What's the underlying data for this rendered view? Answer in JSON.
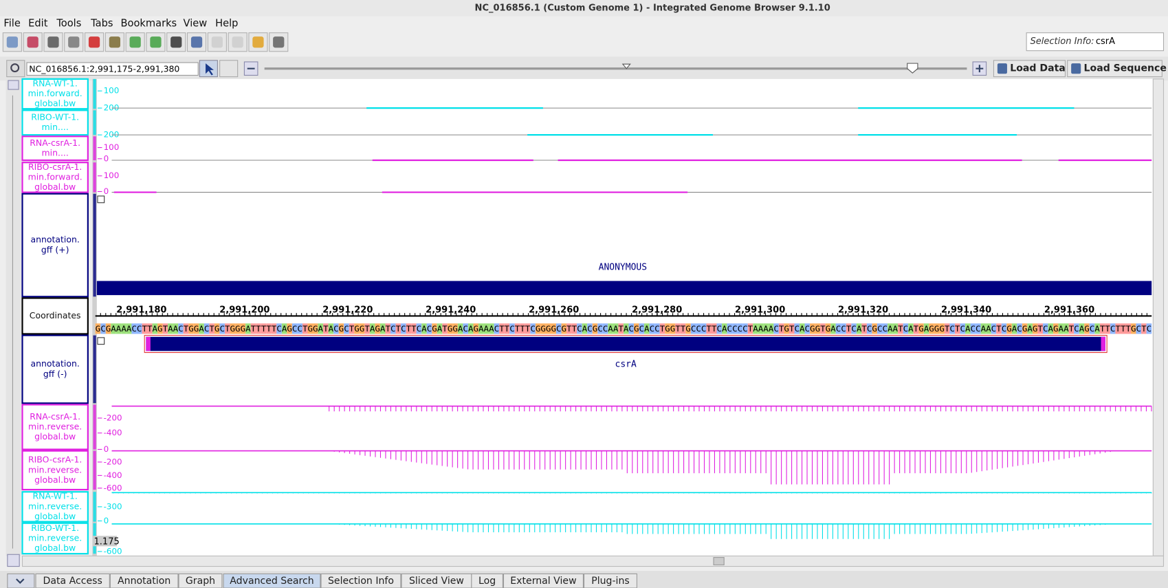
{
  "window": {
    "title": "NC_016856.1  (Custom Genome 1) - Integrated Genome Browser 9.1.10"
  },
  "menu": [
    "File",
    "Edit",
    "Tools",
    "Tabs",
    "Bookmarks",
    "View",
    "Help"
  ],
  "selection_info": {
    "label": "Selection Info:",
    "value": "csrA"
  },
  "location": "NC_016856.1:2,991,175-2,991,380",
  "buttons": [
    "Load Data",
    "Load Sequence"
  ],
  "tracks": [
    {
      "label": [
        "RNA-WT-1.",
        "min.forward.",
        "global.bw"
      ],
      "color": "#00e0e8",
      "ticks": [
        "100",
        "200"
      ]
    },
    {
      "label": [
        "RIBO-WT-1.",
        "min...."
      ],
      "color": "#00e0e8",
      "ticks": [
        "200"
      ]
    },
    {
      "label": [
        "RNA-csrA-1.",
        "min...."
      ],
      "color": "#e020e0",
      "ticks": [
        "100",
        "0"
      ]
    },
    {
      "label": [
        "RIBO-csrA-1.",
        "min.forward.",
        "global.bw"
      ],
      "color": "#e020e0",
      "ticks": [
        "100",
        "0"
      ]
    },
    {
      "label": [
        "annotation.",
        "gff (+)"
      ],
      "color": "#000080",
      "ticks": []
    },
    {
      "label": [
        "Coordinates"
      ],
      "color": "#000000",
      "ticks": []
    },
    {
      "label": [
        "annotation.",
        "gff (-)"
      ],
      "color": "#000080",
      "ticks": []
    },
    {
      "label": [
        "RNA-csrA-1.",
        "min.reverse.",
        "global.bw"
      ],
      "color": "#e020e0",
      "ticks": [
        "-200",
        "-400"
      ]
    },
    {
      "label": [
        "RIBO-csrA-1.",
        "min.reverse.",
        "global.bw"
      ],
      "color": "#e020e0",
      "ticks": [
        "0",
        "-200",
        "-400",
        "-600"
      ]
    },
    {
      "label": [
        "RNA-WT-1.",
        "min.reverse.",
        "global.bw"
      ],
      "color": "#00e0e8",
      "ticks": [
        "-300"
      ]
    },
    {
      "label": [
        "RIBO-WT-1.",
        "min.reverse.",
        "global.bw"
      ],
      "color": "#00e0e8",
      "ticks": [
        "0",
        "-600"
      ]
    }
  ],
  "coordinates": [
    "2,991,180",
    "2,991,200",
    "2,991,220",
    "2,991,240",
    "2,991,260",
    "2,991,280",
    "2,991,300",
    "2,991,320",
    "2,991,340",
    "2,991,360"
  ],
  "sequence": "GCGAAAACCTTAGTAACTGGACTGCTGGGATTTTTCAGCCTGGATACGCTGGTAGATCTCTTCACGATGGACAGAAACTTCTTTCGGGGCGTTCACGCCAATACGCACCTGGTTGCCCTTCACCCCTAAAACTGTCACGGTGACCTCATCGCCAATCATGAGGGTCTCACCAACTCGACGAGTCAGAATCAGCATTCTTTGCTC",
  "features": {
    "plus": "ANONYMOUS",
    "minus": "csrA"
  },
  "cursor_value": "1.175",
  "tabs": [
    "Data Access",
    "Annotation",
    "Graph",
    "Advanced Search",
    "Selection Info",
    "Sliced View",
    "Log",
    "External View",
    "Plug-ins"
  ]
}
